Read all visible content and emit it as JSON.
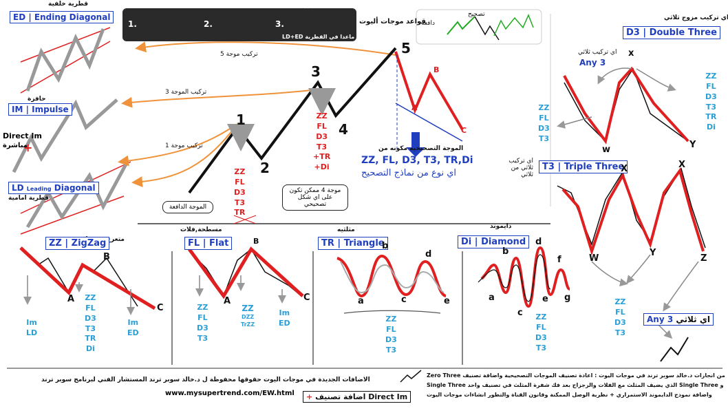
{
  "header": {
    "rules_title": "قواعد موجات أليوت",
    "rule1": "1.",
    "rule2": "2.",
    "rule3": "3.",
    "rule_exception": "ماعدا في القطرية LD+ED",
    "correction": "تصحيح",
    "impulse_word": "دافعه"
  },
  "left": {
    "ed_ar": "قطرية خلفية",
    "ed_label": "ED",
    "ed_en": "Ending Diagonal",
    "im_ar": "حافزة",
    "im_label": "IM",
    "im_en": "Impulse",
    "direct_im": "Direct Im",
    "direct_ar": "مباشرة",
    "ld_label": "LD",
    "ld_small": "Leading",
    "ld_en": "Diagonal",
    "ld_ar": "قطرية امامية",
    "w5_struct": "تركيب موجة 5",
    "w3_struct": "تركيب الموجة 3",
    "w1_struct": "تركيب موجة 1"
  },
  "center": {
    "impulsive_wave": "الموجة الدافعة",
    "corrective_made": "الموجة التصحيحيه مكونه من",
    "corrective_list": "ZZ, FL, D3, T3, TR,Di",
    "any_pattern": "اي نوع من نماذج التصحيح",
    "wave4_note": "موجة 4 ممكن تكون على اي شكل تصحيحي",
    "w2_list": [
      "ZZ",
      "FL",
      "D3",
      "T3",
      "TR"
    ],
    "w4_list": [
      "ZZ",
      "FL",
      "D3",
      "T3",
      "+TR",
      "+Di"
    ],
    "w1": "1",
    "w2": "2",
    "w3": "3",
    "w4": "4",
    "w5": "5",
    "a": "A",
    "b": "B",
    "c": "C"
  },
  "right": {
    "d3_ar": "اي تركيب مزوج ثلاثي",
    "d3_label": "D3",
    "d3_en": "Double Three",
    "any3_ar": "اي تركيب ثلاثي",
    "any3": "Any 3",
    "d3_list": [
      "ZZ",
      "FL",
      "D3",
      "T3",
      "TR",
      "Di"
    ],
    "d3_list2": [
      "ZZ",
      "FL",
      "D3",
      "T3"
    ],
    "x": "x",
    "w": "w",
    "y": "Y",
    "t3_ar": "اي تركيب ثلاثي من ثلاثي",
    "t3_label": "T3",
    "t3_en": "Triple Three",
    "X": "X",
    "W": "W",
    "Y": "Y",
    "Z": "Z",
    "t3_list": [
      "ZZ",
      "FL",
      "D3",
      "T3"
    ],
    "any3_box_ar": "اي ثلاثي",
    "any3_box": "Any 3"
  },
  "bottom": {
    "zz_ar": "متعرج , زجزاج",
    "zz_label": "ZZ",
    "zz_en": "ZigZag",
    "zz_a_list": [
      "ZZ",
      "FL",
      "D3",
      "T3",
      "TR",
      "Di"
    ],
    "zz_left": [
      "Im",
      "LD"
    ],
    "zz_right": [
      "Im",
      "ED"
    ],
    "fl_ar": "مسطحة,فلات",
    "fl_label": "FL",
    "fl_en": "Flat",
    "fl_left": [
      "ZZ",
      "FL",
      "D3",
      "T3"
    ],
    "fl_mid": [
      "ZZ",
      "DZZ",
      "TrZZ"
    ],
    "fl_right": [
      "Im",
      "ED"
    ],
    "tr_ar": "مثلثيه",
    "tr_label": "TR",
    "tr_en": "Triangle",
    "tr_list": [
      "ZZ",
      "FL",
      "D3",
      "T3"
    ],
    "di_ar": "دايموند",
    "di_label": "Di",
    "di_en": "Diamond",
    "di_list": [
      "ZZ",
      "FL",
      "D3",
      "T3"
    ],
    "tr_pts": [
      "a",
      "b",
      "c",
      "d",
      "e"
    ],
    "di_pts": [
      "a",
      "b",
      "c",
      "d",
      "e",
      "f",
      "g"
    ]
  },
  "footer": {
    "copyright": "الاضافات الجديدة في موجات اليوت حقوقها محفوظة ل د.خالد سوبر ترند المستشار الفني لبرنامج سوبر ترند",
    "url": "www.mysupertrend.com/EW.html",
    "add_ar": "اضافة تصنيف",
    "add_label": "Direct Im",
    "note1": "من انجازات د.خالد سوبر ترند في موجات اليوت : اعادة تصنيف الموجات التصحيحية واضافة تصنيف Zero Three",
    "note2": "و Single Three الذي يضيف المثلث مع الفلات والزجزاج بعد فك شفرة المثلث في تصنيف واحد Single Three",
    "note3": "واضافة نموذج الدايموند الاستمراري + نظرية الوصل الممكنة وقانون القناة والتطور انشاءات موجات اليوت"
  }
}
